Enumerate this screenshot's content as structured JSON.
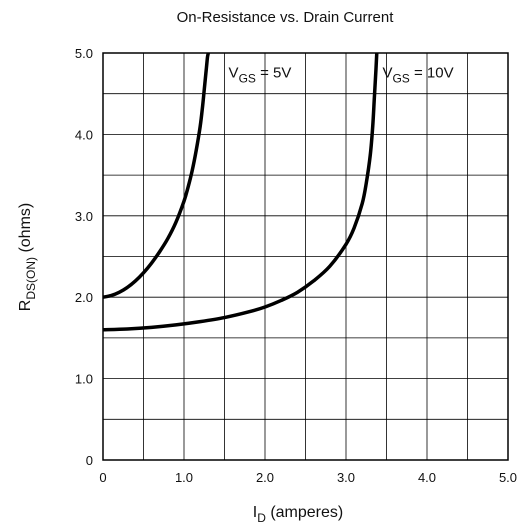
{
  "chart_data": {
    "type": "line",
    "title": "On-Resistance vs. Drain Current",
    "xlabel": {
      "main": "I",
      "sub": "D",
      "unit": " (amperes)"
    },
    "ylabel": {
      "main": "R",
      "sub": "DS(ON)",
      "unit": " (ohms)"
    },
    "xlim": [
      0,
      5.0
    ],
    "ylim": [
      0,
      5.0
    ],
    "x_ticks": [
      {
        "value": 0,
        "label": "0"
      },
      {
        "value": 1.0,
        "label": "1.0"
      },
      {
        "value": 2.0,
        "label": "2.0"
      },
      {
        "value": 3.0,
        "label": "3.0"
      },
      {
        "value": 4.0,
        "label": "4.0"
      },
      {
        "value": 5.0,
        "label": "5.0"
      }
    ],
    "y_ticks": [
      {
        "value": 0,
        "label": "0"
      },
      {
        "value": 1.0,
        "label": "1.0"
      },
      {
        "value": 2.0,
        "label": "2.0"
      },
      {
        "value": 3.0,
        "label": "3.0"
      },
      {
        "value": 4.0,
        "label": "4.0"
      },
      {
        "value": 5.0,
        "label": "5.0"
      }
    ],
    "grid": true,
    "grid_step": 0.5,
    "series": [
      {
        "name": {
          "main": "V",
          "sub": "GS",
          "rest": " = 5V"
        },
        "color": "#000000",
        "x": [
          0,
          0.1,
          0.2,
          0.3,
          0.4,
          0.5,
          0.6,
          0.7,
          0.8,
          0.9,
          1.0,
          1.05,
          1.1,
          1.15,
          1.2,
          1.23,
          1.25,
          1.27,
          1.28,
          1.29,
          1.3
        ],
        "y": [
          2.0,
          2.02,
          2.06,
          2.12,
          2.2,
          2.3,
          2.42,
          2.56,
          2.72,
          2.92,
          3.18,
          3.35,
          3.55,
          3.8,
          4.1,
          4.35,
          4.55,
          4.75,
          4.85,
          4.95,
          5.0
        ]
      },
      {
        "name": {
          "main": "V",
          "sub": "GS",
          "rest": " = 10V"
        },
        "color": "#000000",
        "x": [
          0,
          0.3,
          0.6,
          0.9,
          1.2,
          1.5,
          1.8,
          2.0,
          2.2,
          2.4,
          2.6,
          2.8,
          3.0,
          3.1,
          3.2,
          3.25,
          3.3,
          3.33,
          3.35,
          3.37,
          3.38
        ],
        "y": [
          1.6,
          1.61,
          1.63,
          1.66,
          1.7,
          1.75,
          1.82,
          1.88,
          1.96,
          2.06,
          2.2,
          2.38,
          2.65,
          2.85,
          3.15,
          3.4,
          3.75,
          4.1,
          4.45,
          4.8,
          5.0
        ]
      }
    ],
    "annotations": [
      {
        "series": 0,
        "x": 1.55,
        "y": 4.7
      },
      {
        "series": 1,
        "x": 3.45,
        "y": 4.7
      }
    ]
  }
}
